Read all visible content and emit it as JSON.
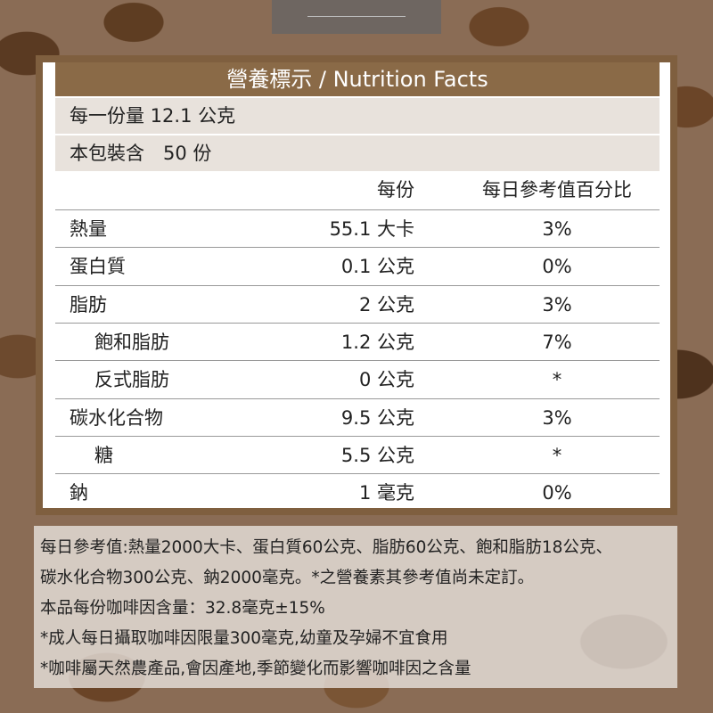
{
  "header": {
    "title": "營養標示 / Nutrition Facts"
  },
  "serving": [
    "每一份量 12.1 公克",
    "本包裝含　50 份"
  ],
  "table": {
    "columns": [
      "每份",
      "每日參考值百分比"
    ],
    "rows": [
      {
        "name": "熱量",
        "amount": "55.1 大卡",
        "daily": "3%",
        "level": 0
      },
      {
        "name": "蛋白質",
        "amount": "0.1 公克",
        "daily": "0%",
        "level": 0
      },
      {
        "name": "脂肪",
        "amount": "2 公克",
        "daily": "3%",
        "level": 0
      },
      {
        "name": "飽和脂肪",
        "amount": "1.2 公克",
        "daily": "7%",
        "level": 1
      },
      {
        "name": "反式脂肪",
        "amount": "0 公克",
        "daily": "*",
        "level": 1
      },
      {
        "name": "碳水化合物",
        "amount": "9.5 公克",
        "daily": "3%",
        "level": 0
      },
      {
        "name": "糖",
        "amount": "5.5 公克",
        "daily": "*",
        "level": 1
      },
      {
        "name": "鈉",
        "amount": "1 毫克",
        "daily": "0%",
        "level": 0
      }
    ]
  },
  "notes": [
    "每日參考值:熱量2000大卡、蛋白質60公克、脂肪60公克、飽和脂肪18公克、",
    "碳水化合物300公克、鈉2000毫克。*之營養素其參考值尚未定訂。",
    "本品每份咖啡因含量：32.8毫克±15%",
    "*成人每日攝取咖啡因限量300毫克,幼童及孕婦不宜食用",
    "*咖啡屬天然農產品,會因產地,季節變化而影響咖啡因之含量"
  ]
}
